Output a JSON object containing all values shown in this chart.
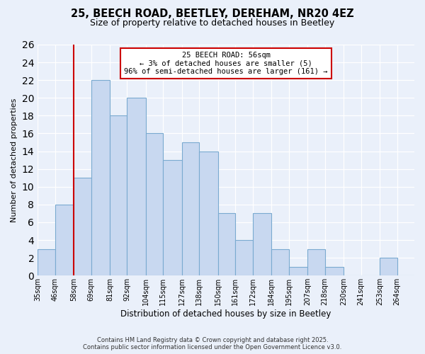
{
  "title": "25, BEECH ROAD, BEETLEY, DEREHAM, NR20 4EZ",
  "subtitle": "Size of property relative to detached houses in Beetley",
  "xlabel": "Distribution of detached houses by size in Beetley",
  "ylabel": "Number of detached properties",
  "bin_labels": [
    "35sqm",
    "46sqm",
    "58sqm",
    "69sqm",
    "81sqm",
    "92sqm",
    "104sqm",
    "115sqm",
    "127sqm",
    "138sqm",
    "150sqm",
    "161sqm",
    "172sqm",
    "184sqm",
    "195sqm",
    "207sqm",
    "218sqm",
    "230sqm",
    "241sqm",
    "253sqm",
    "264sqm"
  ],
  "bar_heights": [
    3,
    8,
    11,
    22,
    18,
    20,
    16,
    13,
    15,
    14,
    7,
    4,
    7,
    3,
    1,
    3,
    1,
    0,
    0,
    2,
    0
  ],
  "bar_color": "#c8d8f0",
  "bar_edge_color": "#7aaad0",
  "property_line_x": 58,
  "property_line_color": "#cc0000",
  "annotation_title": "25 BEECH ROAD: 56sqm",
  "annotation_line1": "← 3% of detached houses are smaller (5)",
  "annotation_line2": "96% of semi-detached houses are larger (161) →",
  "annotation_box_color": "#ffffff",
  "annotation_box_edge": "#cc0000",
  "ylim": [
    0,
    26
  ],
  "yticks": [
    0,
    2,
    4,
    6,
    8,
    10,
    12,
    14,
    16,
    18,
    20,
    22,
    24,
    26
  ],
  "footer_line1": "Contains HM Land Registry data © Crown copyright and database right 2025.",
  "footer_line2": "Contains public sector information licensed under the Open Government Licence v3.0.",
  "bin_edges": [
    35,
    46,
    58,
    69,
    81,
    92,
    104,
    115,
    127,
    138,
    150,
    161,
    172,
    184,
    195,
    207,
    218,
    230,
    241,
    253,
    264,
    275
  ],
  "background_color": "#eaf0fa",
  "title_fontsize": 10.5,
  "subtitle_fontsize": 9,
  "ylabel_fontsize": 8,
  "xlabel_fontsize": 8.5,
  "tick_fontsize": 7,
  "footer_fontsize": 6,
  "annot_fontsize": 7.5
}
